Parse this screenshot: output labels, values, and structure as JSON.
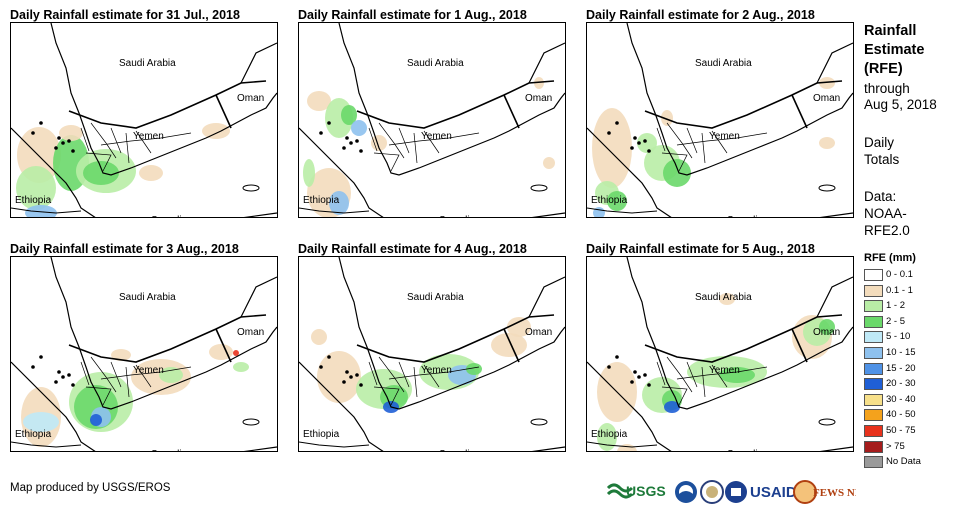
{
  "panels": [
    {
      "title": "Daily Rainfall estimate for 31 Jul., 2018",
      "labels": {
        "saudi": "Saudi Arabia",
        "oman": "Oman",
        "yemen": "Yemen",
        "ethiopia": "Ethiopia",
        "somalia": "Somalia"
      }
    },
    {
      "title": "Daily Rainfall estimate for 1 Aug., 2018",
      "labels": {
        "saudi": "Saudi Arabia",
        "oman": "Oman",
        "yemen": "Yemen",
        "ethiopia": "Ethiopia",
        "somalia": "Somalia"
      }
    },
    {
      "title": "Daily Rainfall estimate for 2 Aug., 2018",
      "labels": {
        "saudi": "Saudi Arabia",
        "oman": "Oman",
        "yemen": "Yemen",
        "ethiopia": "Ethiopia",
        "somalia": "Somalia"
      }
    },
    {
      "title": "Daily Rainfall estimate for 3 Aug., 2018",
      "labels": {
        "saudi": "Saudi Arabia",
        "oman": "Oman",
        "yemen": "Yemen",
        "ethiopia": "Ethiopia",
        "somalia": "Somalia"
      }
    },
    {
      "title": "Daily Rainfall estimate for 4 Aug., 2018",
      "labels": {
        "saudi": "Saudi Arabia",
        "oman": "Oman",
        "yemen": "Yemen",
        "ethiopia": "Ethiopia",
        "somalia": "Somalia"
      }
    },
    {
      "title": "Daily Rainfall estimate for 5 Aug., 2018",
      "labels": {
        "saudi": "Saudi Arabia",
        "oman": "Oman",
        "yemen": "Yemen",
        "ethiopia": "Ethiopia",
        "somalia": "Somalia"
      }
    }
  ],
  "sidebar": {
    "title_line1": "Rainfall",
    "title_line2": "Estimate",
    "title_line3": "(RFE)",
    "through": "through",
    "date": "Aug 5, 2018",
    "daily": "Daily",
    "totals": "Totals",
    "data_label": "Data:",
    "data_line2": "NOAA-",
    "data_line3": "RFE2.0"
  },
  "legend": {
    "title": "RFE (mm)",
    "items": [
      {
        "label": "0 - 0.1",
        "color": "#ffffff"
      },
      {
        "label": "0.1 - 1",
        "color": "#f3dcbc"
      },
      {
        "label": "1 - 2",
        "color": "#b9eda6"
      },
      {
        "label": "2 - 5",
        "color": "#6ad86a"
      },
      {
        "label": "5 - 10",
        "color": "#bfe9f7"
      },
      {
        "label": "10 - 15",
        "color": "#8ec1ee"
      },
      {
        "label": "15 - 20",
        "color": "#4f92e6"
      },
      {
        "label": "20 - 30",
        "color": "#1f5fd6"
      },
      {
        "label": "30 - 40",
        "color": "#f7e08a"
      },
      {
        "label": "40 - 50",
        "color": "#f4a21c"
      },
      {
        "label": "50 - 75",
        "color": "#e8321c"
      },
      {
        "label": "> 75",
        "color": "#a51c1c"
      },
      {
        "label": "No Data",
        "color": "#9a9a9a"
      }
    ]
  },
  "credit": "Map produced by USGS/EROS",
  "logos": {
    "usgs": "USGS",
    "usaid": "USAID",
    "fewsnet": "FEWS NET"
  }
}
